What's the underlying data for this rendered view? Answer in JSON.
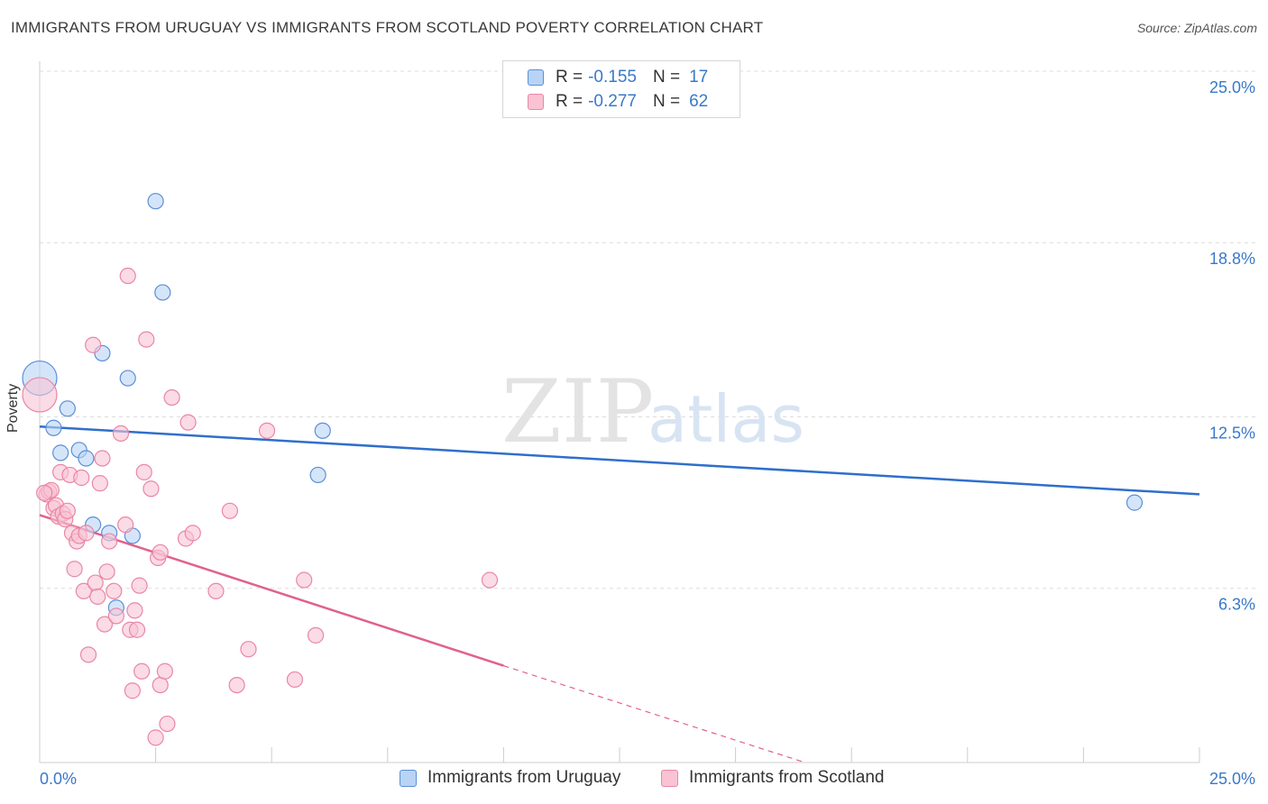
{
  "title": "IMMIGRANTS FROM URUGUAY VS IMMIGRANTS FROM SCOTLAND POVERTY CORRELATION CHART",
  "source": "Source: ZipAtlas.com",
  "watermark": {
    "zip": "ZIP",
    "atlas": "atlas"
  },
  "colors": {
    "uruguay_fill": "#b9d3f5",
    "uruguay_stroke": "#5b8fd6",
    "uruguay_line": "#2f6fcb",
    "scotland_fill": "#f9c3d4",
    "scotland_stroke": "#ea86a6",
    "scotland_line": "#e0618d",
    "axis_text": "#3a78c9",
    "grid": "#dcdcdc"
  },
  "legend_top": {
    "uruguay": {
      "r_label": "R =",
      "r_value": "-0.155",
      "n_label": "N =",
      "n_value": "17"
    },
    "scotland": {
      "r_label": "R =",
      "r_value": "-0.277",
      "n_label": "N =",
      "n_value": "62"
    }
  },
  "legend_bottom": {
    "uruguay": "Immigrants from Uruguay",
    "scotland": "Immigrants from Scotland"
  },
  "chart_data": {
    "type": "scatter",
    "title": "IMMIGRANTS FROM URUGUAY VS IMMIGRANTS FROM SCOTLAND POVERTY CORRELATION CHART",
    "xlabel": "",
    "ylabel": "Poverty",
    "xlim": [
      0,
      25
    ],
    "ylim": [
      0,
      25.0
    ],
    "x_tick_labels": [
      "0.0%",
      "25.0%"
    ],
    "y_ticks": [
      6.3,
      12.5,
      18.8,
      25.0
    ],
    "y_tick_labels": [
      "6.3%",
      "12.5%",
      "18.8%",
      "25.0%"
    ],
    "grid": true,
    "series": [
      {
        "name": "Immigrants from Uruguay",
        "points": [
          {
            "x": 0.0,
            "y": 13.9,
            "size": "large"
          },
          {
            "x": 0.3,
            "y": 12.1
          },
          {
            "x": 0.6,
            "y": 12.8
          },
          {
            "x": 0.45,
            "y": 11.2
          },
          {
            "x": 0.85,
            "y": 11.3
          },
          {
            "x": 1.0,
            "y": 11.0
          },
          {
            "x": 1.35,
            "y": 14.8
          },
          {
            "x": 1.9,
            "y": 13.9
          },
          {
            "x": 2.5,
            "y": 20.3
          },
          {
            "x": 2.65,
            "y": 17.0
          },
          {
            "x": 1.15,
            "y": 8.6
          },
          {
            "x": 1.5,
            "y": 8.3
          },
          {
            "x": 2.0,
            "y": 8.2
          },
          {
            "x": 1.65,
            "y": 5.6
          },
          {
            "x": 6.0,
            "y": 10.4
          },
          {
            "x": 6.1,
            "y": 12.0
          },
          {
            "x": 23.6,
            "y": 9.4
          }
        ],
        "trend": {
          "x0": 0.0,
          "y0": 12.15,
          "x1": 25.0,
          "y1": 9.7
        }
      },
      {
        "name": "Immigrants from Scotland",
        "points": [
          {
            "x": 0.0,
            "y": 13.3,
            "size": "large"
          },
          {
            "x": 0.15,
            "y": 9.7
          },
          {
            "x": 0.2,
            "y": 9.8
          },
          {
            "x": 0.3,
            "y": 9.2
          },
          {
            "x": 0.35,
            "y": 9.3
          },
          {
            "x": 0.4,
            "y": 8.9
          },
          {
            "x": 0.5,
            "y": 9.0
          },
          {
            "x": 0.45,
            "y": 10.5
          },
          {
            "x": 0.55,
            "y": 8.8
          },
          {
            "x": 0.6,
            "y": 9.1
          },
          {
            "x": 0.65,
            "y": 10.4
          },
          {
            "x": 0.7,
            "y": 8.3
          },
          {
            "x": 0.75,
            "y": 7.0
          },
          {
            "x": 0.8,
            "y": 8.0
          },
          {
            "x": 0.85,
            "y": 8.2
          },
          {
            "x": 0.9,
            "y": 10.3
          },
          {
            "x": 0.95,
            "y": 6.2
          },
          {
            "x": 1.0,
            "y": 8.3
          },
          {
            "x": 1.05,
            "y": 3.9
          },
          {
            "x": 1.15,
            "y": 15.1
          },
          {
            "x": 1.2,
            "y": 6.5
          },
          {
            "x": 1.25,
            "y": 6.0
          },
          {
            "x": 1.3,
            "y": 10.1
          },
          {
            "x": 1.35,
            "y": 11.0
          },
          {
            "x": 1.4,
            "y": 5.0
          },
          {
            "x": 1.45,
            "y": 6.9
          },
          {
            "x": 1.5,
            "y": 8.0
          },
          {
            "x": 1.6,
            "y": 6.2
          },
          {
            "x": 1.65,
            "y": 5.3
          },
          {
            "x": 1.75,
            "y": 11.9
          },
          {
            "x": 1.85,
            "y": 8.6
          },
          {
            "x": 1.9,
            "y": 17.6
          },
          {
            "x": 1.95,
            "y": 4.8
          },
          {
            "x": 2.05,
            "y": 5.5
          },
          {
            "x": 2.1,
            "y": 4.8
          },
          {
            "x": 2.0,
            "y": 2.6
          },
          {
            "x": 2.15,
            "y": 6.4
          },
          {
            "x": 2.2,
            "y": 3.3
          },
          {
            "x": 2.25,
            "y": 10.5
          },
          {
            "x": 2.3,
            "y": 15.3
          },
          {
            "x": 2.4,
            "y": 9.9
          },
          {
            "x": 2.5,
            "y": 0.9
          },
          {
            "x": 2.55,
            "y": 7.4
          },
          {
            "x": 2.6,
            "y": 7.6
          },
          {
            "x": 2.6,
            "y": 2.8
          },
          {
            "x": 2.7,
            "y": 3.3
          },
          {
            "x": 2.75,
            "y": 1.4
          },
          {
            "x": 2.85,
            "y": 13.2
          },
          {
            "x": 3.15,
            "y": 8.1
          },
          {
            "x": 3.2,
            "y": 12.3
          },
          {
            "x": 3.3,
            "y": 8.3
          },
          {
            "x": 3.8,
            "y": 6.2
          },
          {
            "x": 4.1,
            "y": 9.1
          },
          {
            "x": 4.25,
            "y": 2.8
          },
          {
            "x": 4.5,
            "y": 4.1
          },
          {
            "x": 4.9,
            "y": 12.0
          },
          {
            "x": 5.5,
            "y": 3.0
          },
          {
            "x": 5.7,
            "y": 6.6
          },
          {
            "x": 5.95,
            "y": 4.6
          },
          {
            "x": 9.7,
            "y": 6.6
          },
          {
            "x": 0.25,
            "y": 9.85
          },
          {
            "x": 0.1,
            "y": 9.75
          }
        ],
        "trend": {
          "x0": 0.0,
          "y0": 8.95,
          "x1": 10.0,
          "y1": 3.5,
          "dashed_to_x": 16.5,
          "dashed_to_y": 0.0
        }
      }
    ]
  }
}
